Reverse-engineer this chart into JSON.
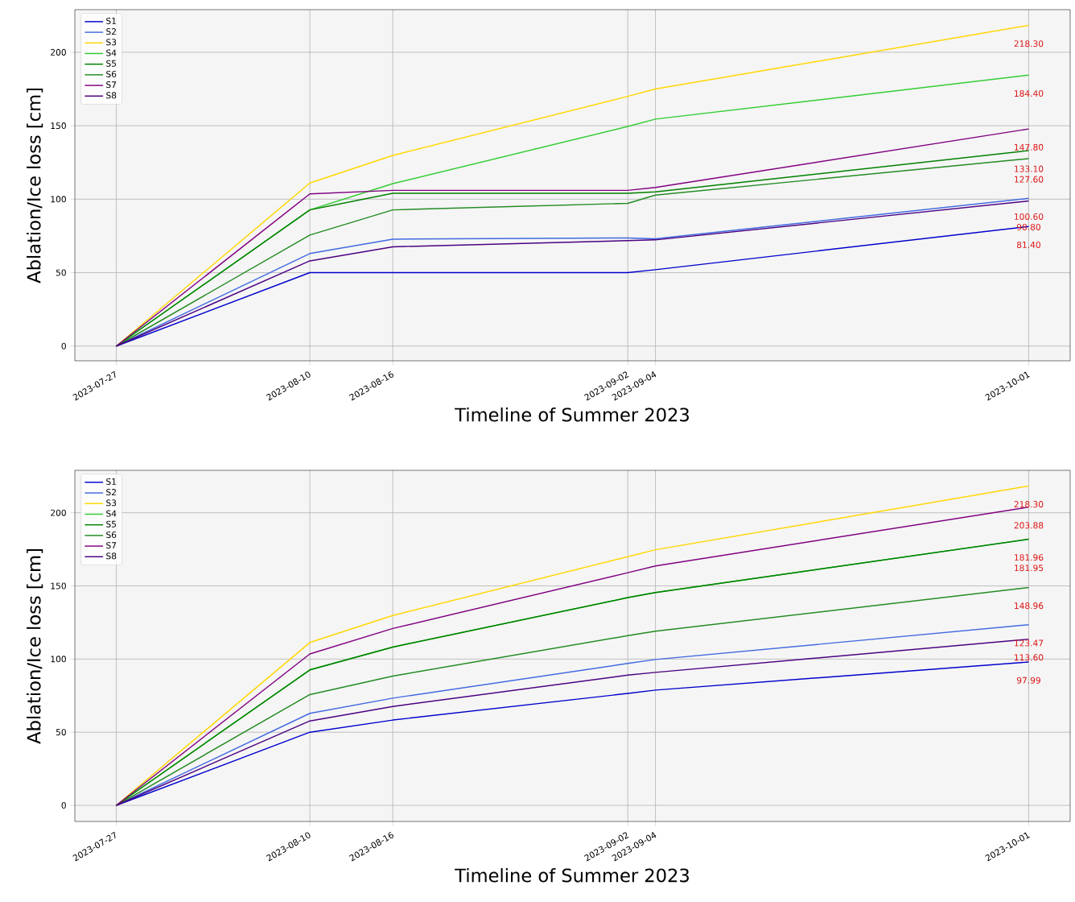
{
  "chart_data": [
    {
      "type": "line",
      "xlabel": "Timeline of Summer 2023",
      "ylabel": "Ablation/Ice loss [cm]",
      "x": [
        "2023-07-27",
        "2023-08-10",
        "2023-08-16",
        "2023-09-02",
        "2023-09-04",
        "2023-10-01"
      ],
      "series": [
        {
          "name": "S1",
          "color": "#0000cd",
          "values": [
            0,
            50,
            50,
            50,
            52,
            81.4
          ]
        },
        {
          "name": "S2",
          "color": "#4169e1",
          "values": [
            0,
            63,
            72.8,
            73.6,
            73,
            100.6
          ]
        },
        {
          "name": "S3",
          "color": "#ffd700",
          "values": [
            0,
            111,
            129.8,
            170,
            175,
            218.3
          ]
        },
        {
          "name": "S4",
          "color": "#32cd32",
          "values": [
            0,
            92.7,
            110.6,
            149.5,
            154.5,
            184.4
          ]
        },
        {
          "name": "S5",
          "color": "#008000",
          "values": [
            0,
            92.7,
            104,
            104,
            105,
            133.1
          ]
        },
        {
          "name": "S6",
          "color": "#228b22",
          "values": [
            0,
            75.6,
            92.7,
            97.2,
            102.8,
            127.6
          ]
        },
        {
          "name": "S7",
          "color": "#800080",
          "values": [
            0,
            103.6,
            106,
            106,
            108,
            147.8
          ]
        },
        {
          "name": "S8",
          "color": "#4b0082",
          "values": [
            0,
            58,
            67.6,
            71.8,
            72.3,
            98.8
          ]
        }
      ],
      "annotations": [
        {
          "text": "81.40",
          "x": "2023-10-01",
          "y": 81.4
        },
        {
          "text": "100.60",
          "x": "2023-10-01",
          "y": 100.6
        },
        {
          "text": "218.30",
          "x": "2023-10-01",
          "y": 218.3
        },
        {
          "text": "184.40",
          "x": "2023-10-01",
          "y": 184.4
        },
        {
          "text": "133.10",
          "x": "2023-10-01",
          "y": 133.1
        },
        {
          "text": "127.60",
          "x": "2023-10-01",
          "y": 127.6
        },
        {
          "text": "147.80",
          "x": "2023-10-01",
          "y": 147.8
        },
        {
          "text": "98.80",
          "x": "2023-10-01",
          "y": 98.8
        }
      ],
      "xlim": [
        "2023-07-24",
        "2023-10-04"
      ],
      "ylim": [
        -10,
        229
      ],
      "xticks": [
        "2023-07-27",
        "2023-08-10",
        "2023-08-16",
        "2023-09-02",
        "2023-09-04",
        "2023-10-01"
      ],
      "yticks": [
        0,
        50,
        100,
        150,
        200
      ],
      "grid": true,
      "legend": "top left",
      "line_style": "solid",
      "marker": "none"
    },
    {
      "type": "line",
      "xlabel": "Timeline of Summer 2023",
      "ylabel": "Ablation/Ice loss [cm]",
      "x": [
        "2023-07-27",
        "2023-08-10",
        "2023-08-16",
        "2023-09-02",
        "2023-09-04",
        "2023-10-01"
      ],
      "series": [
        {
          "name": "S1",
          "color": "#0000cd",
          "values": [
            0,
            50,
            58.3,
            76.5,
            78.8,
            97.99
          ]
        },
        {
          "name": "S2",
          "color": "#4169e1",
          "values": [
            0,
            62.9,
            73.3,
            97,
            99.7,
            123.47
          ]
        },
        {
          "name": "S3",
          "color": "#ffd700",
          "values": [
            0,
            111.3,
            129.8,
            170,
            174.7,
            218.3
          ]
        },
        {
          "name": "S4",
          "color": "#32cd32",
          "values": [
            0,
            92.6,
            108.2,
            142,
            145.5,
            181.96
          ]
        },
        {
          "name": "S5",
          "color": "#008000",
          "values": [
            0,
            92.6,
            108.2,
            142,
            145.5,
            181.95
          ]
        },
        {
          "name": "S6",
          "color": "#228b22",
          "values": [
            0,
            75.7,
            88.4,
            116,
            119,
            148.96
          ]
        },
        {
          "name": "S7",
          "color": "#800080",
          "values": [
            0,
            103.5,
            120.9,
            159,
            163.6,
            203.88
          ]
        },
        {
          "name": "S8",
          "color": "#4b0082",
          "values": [
            0,
            57.7,
            67.6,
            89,
            90.9,
            113.6
          ]
        }
      ],
      "annotations": [
        {
          "text": "97.99",
          "x": "2023-10-01",
          "y": 97.99
        },
        {
          "text": "123.47",
          "x": "2023-10-01",
          "y": 123.47
        },
        {
          "text": "218.30",
          "x": "2023-10-01",
          "y": 218.3
        },
        {
          "text": "181.96",
          "x": "2023-10-01",
          "y": 181.96
        },
        {
          "text": "181.95",
          "x": "2023-10-01",
          "y": 181.95
        },
        {
          "text": "148.96",
          "x": "2023-10-01",
          "y": 148.96
        },
        {
          "text": "203.88",
          "x": "2023-10-01",
          "y": 203.88
        },
        {
          "text": "113.60",
          "x": "2023-10-01",
          "y": 113.6
        }
      ],
      "xlim": [
        "2023-07-24",
        "2023-10-04"
      ],
      "ylim": [
        -11,
        229
      ],
      "xticks": [
        "2023-07-27",
        "2023-08-10",
        "2023-08-16",
        "2023-09-02",
        "2023-09-04",
        "2023-10-01"
      ],
      "yticks": [
        0,
        50,
        100,
        150,
        200
      ],
      "grid": true,
      "legend": "top left",
      "line_style": "solid",
      "marker": "none"
    }
  ]
}
